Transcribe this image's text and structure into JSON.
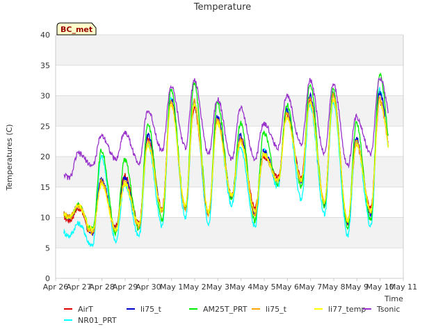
{
  "chart_data": {
    "type": "line",
    "title": "Temperature",
    "xlabel": "Time",
    "ylabel": "Temperatures (C)",
    "badge": "BC_met",
    "ylim": [
      0,
      40
    ],
    "yticks": [
      0,
      5,
      10,
      15,
      20,
      25,
      30,
      35,
      40
    ],
    "xlim": [
      "2024-04-26",
      "2024-05-11"
    ],
    "xticks": [
      "Apr 26",
      "Apr 27",
      "Apr 28",
      "Apr 29",
      "Apr 30",
      "May 1",
      "May 2",
      "May 3",
      "May 4",
      "May 5",
      "May 6",
      "May 7",
      "May 8",
      "May 9",
      "May 10",
      "May 11"
    ],
    "grid": true,
    "legend_position": "bottom",
    "daily_min_max": {
      "days": [
        "Apr 26",
        "Apr 27",
        "Apr 28",
        "Apr 29",
        "Apr 30",
        "May 1",
        "May 2",
        "May 3",
        "May 4",
        "May 5",
        "May 6",
        "May 7",
        "May 8",
        "May 9",
        "May 10"
      ],
      "note_free": true
    },
    "series": [
      {
        "name": "AirT",
        "color": "#dd0000",
        "min": [
          9.5,
          7.5,
          8.5,
          9.0,
          11.5,
          11.5,
          11.0,
          13.5,
          11.5,
          16.5,
          16.5,
          12.5,
          9.0,
          11.5,
          18.0
        ],
        "max": [
          null,
          16.0,
          17.0,
          23.0,
          29.0,
          28.0,
          26.0,
          23.0,
          20.0,
          27.0,
          29.5,
          30.0,
          22.0,
          29.0,
          33.0
        ]
      },
      {
        "name": "NR01_PRT",
        "color": "#00ffff",
        "min": [
          7.0,
          5.5,
          6.0,
          7.0,
          8.5,
          10.0,
          9.0,
          12.0,
          8.5,
          15.0,
          13.0,
          10.5,
          7.0,
          8.5,
          16.0
        ],
        "max": [
          null,
          20.0,
          15.5,
          22.0,
          29.5,
          29.0,
          26.0,
          21.5,
          21.0,
          27.5,
          28.5,
          29.0,
          22.5,
          31.0,
          34.5
        ]
      },
      {
        "name": "li75_t",
        "color": "#0000cc",
        "min": [
          10.0,
          7.5,
          8.0,
          8.5,
          11.0,
          11.5,
          10.5,
          13.5,
          10.5,
          16.0,
          16.0,
          12.0,
          9.0,
          10.5,
          17.5
        ],
        "max": [
          null,
          16.5,
          16.5,
          23.5,
          29.5,
          29.0,
          26.5,
          23.5,
          21.0,
          27.5,
          30.0,
          30.5,
          23.0,
          30.5,
          34.0
        ]
      },
      {
        "name": "AM25T_PRT",
        "color": "#00ee00",
        "min": [
          10.0,
          8.0,
          7.5,
          8.0,
          9.5,
          11.5,
          10.5,
          13.0,
          9.5,
          15.5,
          15.0,
          12.0,
          8.5,
          9.5,
          17.5
        ],
        "max": [
          null,
          21.0,
          19.5,
          25.5,
          31.0,
          32.0,
          29.0,
          25.5,
          24.0,
          28.5,
          32.0,
          31.0,
          25.5,
          33.5,
          36.5
        ]
      },
      {
        "name": "li75_t",
        "color": "#ffa500",
        "min": [
          10.0,
          7.5,
          8.0,
          8.5,
          11.0,
          11.5,
          10.5,
          13.5,
          10.5,
          16.0,
          16.0,
          12.5,
          9.5,
          11.0,
          18.0
        ],
        "max": [
          null,
          16.0,
          16.0,
          22.5,
          29.0,
          29.0,
          26.0,
          23.0,
          20.5,
          27.0,
          29.5,
          30.0,
          22.5,
          29.5,
          33.5
        ]
      },
      {
        "name": "li77_temp",
        "color": "#ffff00",
        "min": [
          10.0,
          8.0,
          8.0,
          9.0,
          11.0,
          12.0,
          11.0,
          13.5,
          11.0,
          16.0,
          16.0,
          12.5,
          9.5,
          11.0,
          18.0
        ],
        "max": [
          null,
          15.5,
          15.5,
          22.0,
          28.5,
          28.5,
          25.5,
          22.5,
          20.5,
          26.5,
          29.0,
          29.5,
          22.0,
          29.0,
          33.0
        ]
      },
      {
        "name": "Tsonic",
        "color": "#9933cc",
        "min": [
          16.5,
          18.5,
          19.5,
          19.0,
          21.0,
          21.5,
          20.5,
          19.5,
          19.5,
          21.5,
          22.0,
          20.5,
          18.5,
          20.5,
          24.5
        ],
        "max": [
          20.5,
          23.5,
          24.0,
          27.5,
          31.5,
          32.5,
          29.5,
          28.0,
          25.5,
          30.0,
          32.5,
          32.0,
          26.5,
          33.0,
          35.5
        ]
      }
    ]
  }
}
